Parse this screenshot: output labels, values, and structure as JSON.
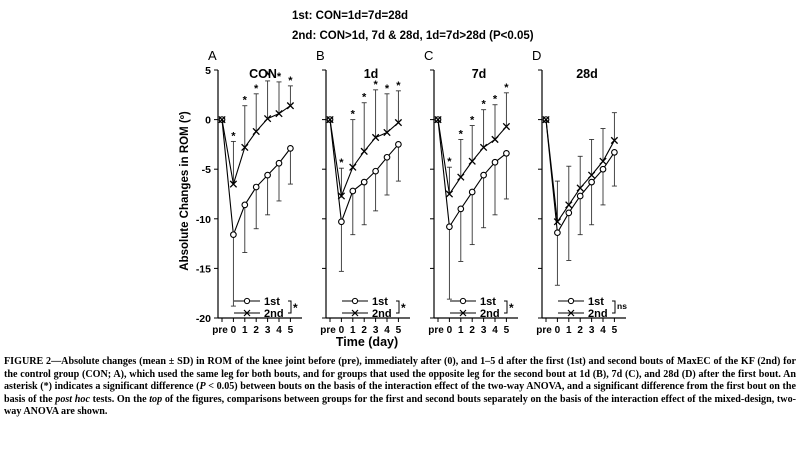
{
  "header": {
    "line1": "1st: CON=1d=7d=28d",
    "line2": "2nd: CON>1d, 7d & 28d, 1d=7d>28d (P<0.05)"
  },
  "axes": {
    "ylabel": "Absolute Changes in ROM (º)",
    "xlabel": "Time (day)",
    "ylim": [
      -20,
      5
    ],
    "yticks": [
      "5",
      "0",
      "-5",
      "-10",
      "-15",
      "-20"
    ],
    "xticks": [
      "pre",
      "0",
      "1",
      "2",
      "3",
      "4",
      "5"
    ]
  },
  "chart_data": [
    {
      "type": "line",
      "panel_letter": "A",
      "title": "CON",
      "x": [
        "pre",
        "0",
        "1",
        "2",
        "3",
        "4",
        "5"
      ],
      "ylim": [
        -20,
        5
      ],
      "series": [
        {
          "name": "1st",
          "marker": "circle",
          "values": [
            0,
            -11.6,
            -8.6,
            -6.8,
            -5.6,
            -4.4,
            -2.9
          ],
          "sd": [
            0,
            7.2,
            4.8,
            4.2,
            4.0,
            3.8,
            3.6
          ]
        },
        {
          "name": "2nd",
          "marker": "x",
          "values": [
            0,
            -6.5,
            -2.8,
            -1.2,
            0.1,
            0.6,
            1.4
          ],
          "sd": [
            0,
            4.3,
            4.2,
            3.8,
            3.8,
            3.2,
            2.0
          ]
        }
      ],
      "star_positions": [
        1,
        2,
        3,
        4,
        5,
        6
      ],
      "bracket_mark": "*"
    },
    {
      "type": "line",
      "panel_letter": "B",
      "title": "1d",
      "x": [
        "pre",
        "0",
        "1",
        "2",
        "3",
        "4",
        "5"
      ],
      "ylim": [
        -20,
        5
      ],
      "series": [
        {
          "name": "1st",
          "marker": "circle",
          "values": [
            0,
            -10.3,
            -7.2,
            -6.3,
            -5.2,
            -3.8,
            -2.5
          ],
          "sd": [
            0,
            5.0,
            4.4,
            4.3,
            4.0,
            3.8,
            3.7
          ]
        },
        {
          "name": "2nd",
          "marker": "x",
          "values": [
            0,
            -7.7,
            -4.8,
            -3.2,
            -1.8,
            -1.3,
            -0.3
          ],
          "sd": [
            0,
            2.8,
            4.8,
            4.9,
            4.8,
            3.9,
            3.2
          ]
        }
      ],
      "star_positions": [
        1,
        2,
        3,
        4,
        5,
        6
      ],
      "bracket_mark": "*"
    },
    {
      "type": "line",
      "panel_letter": "C",
      "title": "7d",
      "x": [
        "pre",
        "0",
        "1",
        "2",
        "3",
        "4",
        "5"
      ],
      "ylim": [
        -20,
        5
      ],
      "series": [
        {
          "name": "1st",
          "marker": "circle",
          "values": [
            0,
            -10.8,
            -9.0,
            -7.3,
            -5.6,
            -4.3,
            -3.4
          ],
          "sd": [
            0,
            7.3,
            5.3,
            5.3,
            5.3,
            5.3,
            4.6
          ]
        },
        {
          "name": "2nd",
          "marker": "x",
          "values": [
            0,
            -7.5,
            -5.8,
            -4.2,
            -2.8,
            -2.0,
            -0.7
          ],
          "sd": [
            0,
            2.7,
            3.8,
            3.6,
            3.8,
            3.5,
            3.4
          ]
        }
      ],
      "star_positions": [
        1,
        2,
        3,
        4,
        5,
        6
      ],
      "bracket_mark": "*"
    },
    {
      "type": "line",
      "panel_letter": "D",
      "title": "28d",
      "x": [
        "pre",
        "0",
        "1",
        "2",
        "3",
        "4",
        "5"
      ],
      "ylim": [
        -20,
        5
      ],
      "series": [
        {
          "name": "1st",
          "marker": "circle",
          "values": [
            0,
            -11.4,
            -9.4,
            -7.7,
            -6.3,
            -5.0,
            -3.3
          ],
          "sd": [
            0,
            5.3,
            4.8,
            3.9,
            4.3,
            3.6,
            3.4
          ]
        },
        {
          "name": "2nd",
          "marker": "x",
          "values": [
            0,
            -10.3,
            -8.6,
            -6.9,
            -5.6,
            -4.2,
            -2.1
          ],
          "sd": [
            0,
            4.1,
            3.9,
            3.2,
            3.6,
            3.3,
            2.8
          ]
        }
      ],
      "star_positions": [],
      "bracket_mark": "ns"
    }
  ],
  "caption": {
    "p1": "FIGURE 2—Absolute changes (mean ± SD) in ROM of the knee joint before (pre), immediately after (0), and 1–5 d after the first (1st) and second bouts of MaxEC of the KF (2nd) for the control group (CON; A), which used the same leg for both bouts, and for groups that used the opposite leg for the second bout at 1d (B), 7d (C), and 28d (D) after the first bout. An asterisk (*) indicates a significant difference (",
    "p_italic": "P",
    "p2": " < 0.05) between bouts on the basis of the interaction effect of the two-way ANOVA, and a significant difference from the first bout on the basis of the ",
    "posthoc": "post hoc",
    "p3": " tests. On the ",
    "top": "top",
    "p4": " of the figures, comparisons between groups for the first and second bouts separately on the basis of the interaction effect of the mixed-design, two-way ANOVA are shown."
  }
}
